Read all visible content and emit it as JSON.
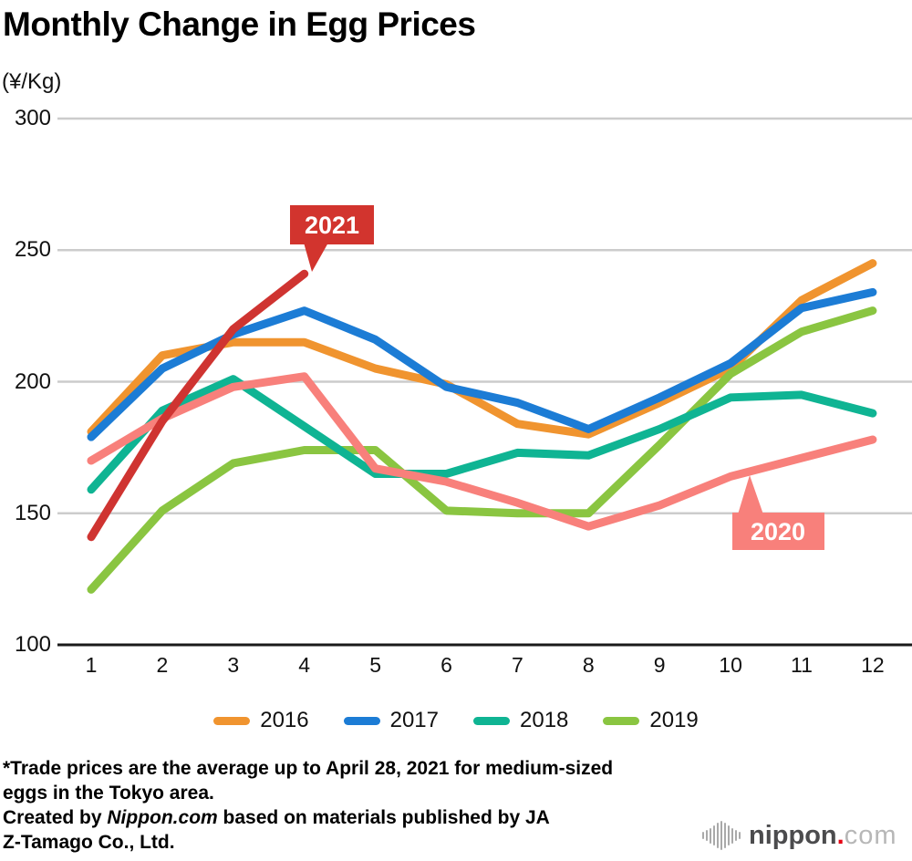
{
  "title": "Monthly Change in Egg Prices",
  "unit_label": "(¥/Kg)",
  "chart_data": {
    "type": "line",
    "title": "Monthly Change in Egg Prices",
    "ylabel": "(¥/Kg)",
    "categories": [
      "1",
      "2",
      "3",
      "4",
      "5",
      "6",
      "7",
      "8",
      "9",
      "10",
      "11",
      "12"
    ],
    "ylim": [
      100,
      300
    ],
    "yticks": [
      "300",
      "250",
      "200",
      "150",
      "100"
    ],
    "grid": true,
    "legend_position": "bottom",
    "series": [
      {
        "name": "2016",
        "color": "#F0942F",
        "in_legend": true,
        "values": [
          181,
          210,
          215,
          215,
          205,
          199,
          184,
          180,
          192,
          205,
          231,
          245
        ]
      },
      {
        "name": "2017",
        "color": "#1C7CD5",
        "in_legend": true,
        "values": [
          179,
          205,
          218,
          227,
          216,
          198,
          192,
          182,
          194,
          207,
          228,
          234
        ]
      },
      {
        "name": "2018",
        "color": "#0FB493",
        "in_legend": true,
        "values": [
          159,
          189,
          201,
          183,
          165,
          165,
          173,
          172,
          182,
          194,
          195,
          188
        ]
      },
      {
        "name": "2019",
        "color": "#8AC541",
        "in_legend": true,
        "values": [
          121,
          151,
          169,
          174,
          174,
          151,
          150,
          150,
          176,
          203,
          219,
          227
        ]
      },
      {
        "name": "2020",
        "color": "#F8807B",
        "in_legend": false,
        "values": [
          170,
          186,
          198,
          202,
          167,
          162,
          154,
          145,
          153,
          164,
          171,
          178
        ]
      },
      {
        "name": "2021",
        "color": "#CF3431",
        "in_legend": false,
        "values": [
          141,
          185,
          220,
          241
        ]
      }
    ],
    "annotations": [
      {
        "label": "2021",
        "color": "#D2342E",
        "attached_series": "2021",
        "points_at_month": 4
      },
      {
        "label": "2020",
        "color": "#F8807B",
        "attached_series": "2020",
        "points_at_month": 10
      }
    ]
  },
  "footnote": {
    "line1": "*Trade prices are the average up to April 28, 2021 for medium-sized",
    "line2": "eggs in the Tokyo area.",
    "credit_prefix": "Created by ",
    "credit_brand": "Nippon.com",
    "credit_suffix": " based on materials published by JA",
    "credit_line2": "Z-Tamago Co., Ltd."
  },
  "logo": {
    "brand": "nippon",
    "dot": ".",
    "tld": "com"
  }
}
